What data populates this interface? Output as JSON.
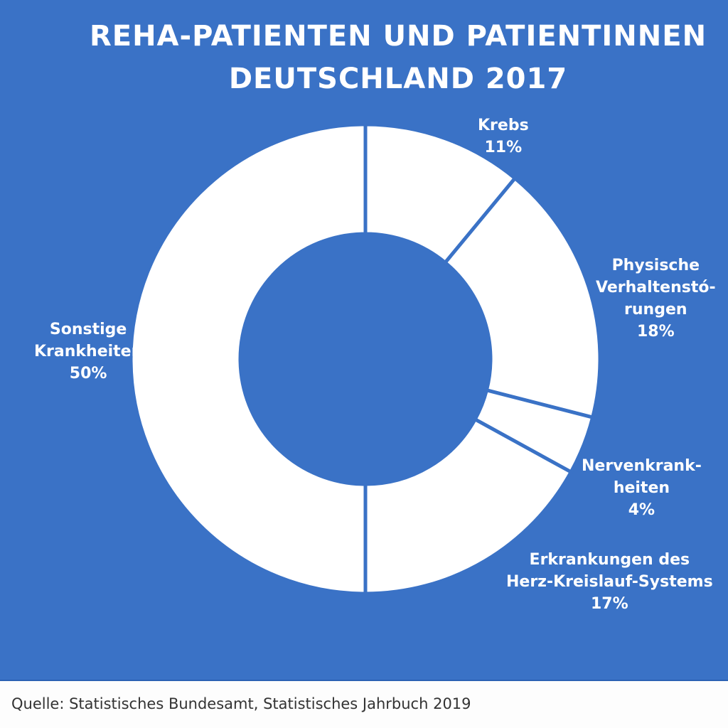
{
  "chart_data": {
    "type": "pie",
    "donut": true,
    "title": [
      "REHA-PATIENTEN UND PATIENTINNEN",
      "DEUTSCHLAND 2017"
    ],
    "slices": [
      {
        "label": [
          "Krebs"
        ],
        "value": 11,
        "value_label": "11%"
      },
      {
        "label": [
          "Physische",
          "Verhaltenstó-",
          "rungen"
        ],
        "value": 18,
        "value_label": "18%"
      },
      {
        "label": [
          "Nervenkrank-",
          "heiten"
        ],
        "value": 4,
        "value_label": "4%"
      },
      {
        "label": [
          "Erkrankungen des",
          "Herz-Kreislauf-Systems"
        ],
        "value": 17,
        "value_label": "17%"
      },
      {
        "label": [
          "Sonstige",
          "Krankheiten"
        ],
        "value": 50,
        "value_label": "50%"
      }
    ],
    "colors": {
      "background": "#3a72c6",
      "slice": "#ffffff",
      "text": "#ffffff"
    }
  },
  "source": "Quelle: Statistisches Bundesamt, Statistisches Jahrbuch 2019"
}
